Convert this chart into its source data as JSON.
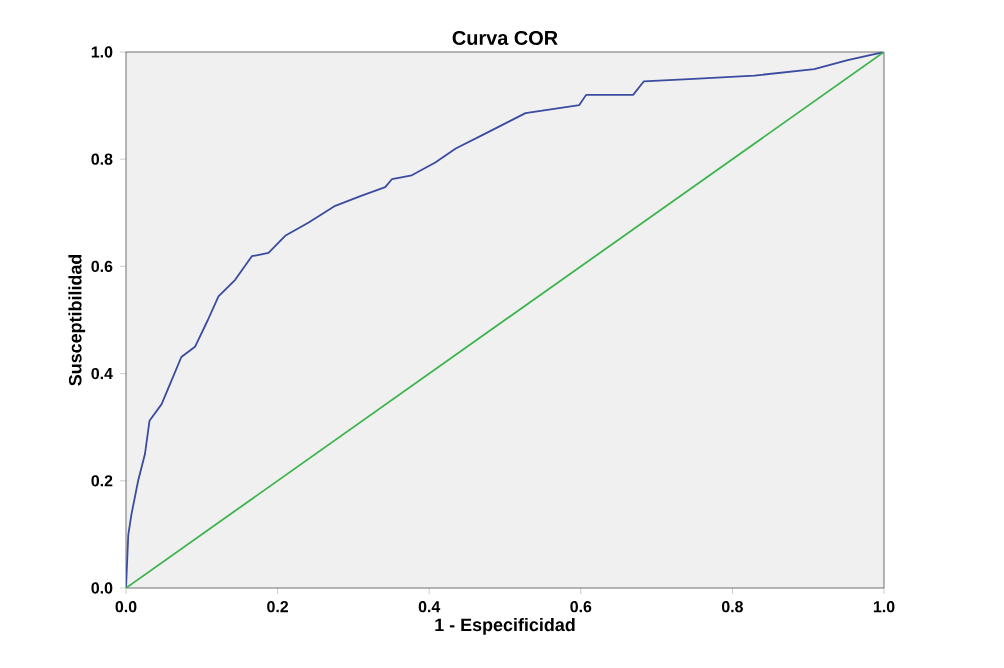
{
  "chart_data": {
    "type": "line",
    "title": "Curva COR",
    "xlabel": "1 - Especificidad",
    "ylabel": "Susceptibilidad",
    "xlim": [
      0,
      1
    ],
    "ylim": [
      0,
      1
    ],
    "xticks": [
      {
        "value": 0,
        "label": "0.0"
      },
      {
        "value": 0.2,
        "label": "0.2"
      },
      {
        "value": 0.4,
        "label": "0.4"
      },
      {
        "value": 0.6,
        "label": "0.6"
      },
      {
        "value": 0.8,
        "label": "0.8"
      },
      {
        "value": 1,
        "label": "1.0"
      }
    ],
    "yticks": [
      {
        "value": 0,
        "label": "0.0"
      },
      {
        "value": 0.2,
        "label": "0.2"
      },
      {
        "value": 0.4,
        "label": "0.4"
      },
      {
        "value": 0.6,
        "label": "0.6"
      },
      {
        "value": 0.8,
        "label": "0.8"
      },
      {
        "value": 1,
        "label": "1.0"
      }
    ],
    "grid": false,
    "marker": "none",
    "line_style": "solid",
    "series": [
      {
        "color": "#3b4ba0",
        "x": [
          0,
          0.003,
          0.007,
          0.016,
          0.025,
          0.031,
          0.047,
          0.06,
          0.073,
          0.091,
          0.108,
          0.122,
          0.144,
          0.166,
          0.188,
          0.21,
          0.241,
          0.276,
          0.311,
          0.342,
          0.351,
          0.377,
          0.408,
          0.435,
          0.47,
          0.505,
          0.527,
          0.598,
          0.607,
          0.669,
          0.683,
          0.749,
          0.829,
          0.908,
          0.952,
          1.0
        ],
        "values": [
          0,
          0.099,
          0.136,
          0.2,
          0.25,
          0.312,
          0.343,
          0.387,
          0.431,
          0.45,
          0.5,
          0.544,
          0.575,
          0.619,
          0.625,
          0.657,
          0.682,
          0.713,
          0.732,
          0.748,
          0.763,
          0.77,
          0.794,
          0.82,
          0.845,
          0.87,
          0.886,
          0.901,
          0.92,
          0.92,
          0.945,
          0.95,
          0.956,
          0.968,
          0.985,
          1.0
        ]
      },
      {
        "color": "#3cb44b",
        "x": [
          0,
          1
        ],
        "values": [
          0,
          1
        ]
      }
    ]
  }
}
